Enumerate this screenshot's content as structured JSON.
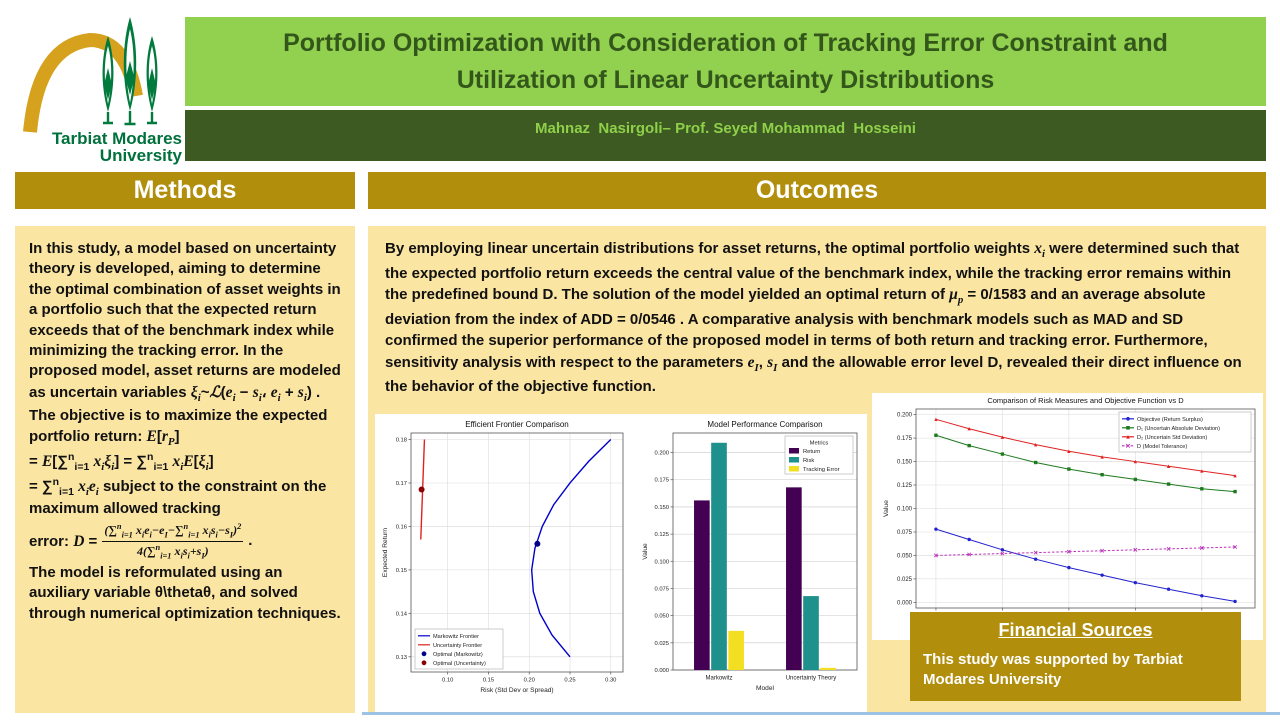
{
  "header": {
    "title_line1": "Portfolio Optimization with Consideration of Tracking Error Constraint and",
    "title_line2": "Utilization of Linear Uncertainty Distributions",
    "authors": "Mahnaz  Nasirgoli– Prof. Seyed Mohammad  Hosseini",
    "logo_text_line1": "Tarbiat Modares",
    "logo_text_line2": "University"
  },
  "methods": {
    "heading": "Methods",
    "para1_html": "In this study, a model based on uncertainty theory is developed, aiming to determine the optimal combination of asset weights in a portfolio such that the expected return exceeds that of the benchmark index while minimizing the tracking error. In the proposed model, asset returns are modeled as uncertain variables <i>ξ<sub>i</sub></i>~<i>ℒ</i>(<i>e<sub>i</sub></i> − <i>s<sub>i</sub></i>، <i>e<sub>i</sub></i> + <i>s<sub>i</sub></i>) . The objective is to maximize the expected portfolio return: <i>E</i>[<i>r<sub>P</sub></i>]<br>= <i>E</i>[∑<sup>n</sup><sub>i=1</sub> <i>x<sub>i</sub>ξ<sub>i</sub></i>] = ∑<sup>n</sup><sub>i=1</sub> <i>x<sub>i</sub>E</i>[<i>ξ<sub>i</sub></i>]<br>= ∑<sup>n</sup><sub>i=1</sub> <i>x<sub>i</sub>e<sub>i</sub></i> subject to the constraint on the maximum allowed tracking",
    "error_prefix_html": "error: <i>D</i> =",
    "frac_num_html": "(∑<sup>n</sup><sub>i=1</sub> x<sub>i</sub>e<sub>i</sub>−e<sub>I</sub>−∑<sup>n</sup><sub>i=1</sub> x<sub>i</sub>s<sub>i</sub>−s<sub>I</sub>)<sup>2</sup>",
    "frac_den_html": "4(∑<sup>n</sup><sub>i=1</sub> x<sub>i</sub>s<sub>i</sub>+s<sub>I</sub>)",
    "frac_period": ".",
    "para2_html": "The model is reformulated using an auxiliary variable θ\\thetaθ, and solved through numerical optimization techniques."
  },
  "outcomes": {
    "heading": "Outcomes",
    "para_html": "By employing linear uncertain distributions for asset returns, the optimal portfolio weights <i>x<sub>i</sub></i> were determined such that the expected portfolio return exceeds the central value of the benchmark index, while the tracking error remains within the predefined bound D. The solution of the model yielded an optimal return of <i>μ<sub>p</sub></i> = 0/1583  and an average absolute deviation from the index of ADD = 0/0546 . A comparative analysis with benchmark models such as MAD and SD confirmed the superior performance of the proposed model in terms of both return and tracking error. Furthermore, sensitivity analysis with respect to the parameters <i>e<sub>I</sub></i>, <i>s<sub>I</sub></i> and the allowable error level D, revealed their direct influence on the behavior of the objective function."
  },
  "financial": {
    "heading": "Financial  Sources",
    "body": "This study was supported by Tarbiat Modares University"
  },
  "colors": {
    "light_green": "#92D050",
    "dark_green_bar": "#3C5A22",
    "title_text_green": "#33571B",
    "gold": "#B28E0D",
    "cream": "#FBE5A3",
    "logo_green": "#007A3D",
    "logo_gold": "#D6A21D",
    "bottom_line_blue": "#9CC2E5"
  },
  "chart_data": [
    {
      "type": "line",
      "title": "Efficient Frontier Comparison",
      "xlabel": "Risk (Std Dev or Spread)",
      "ylabel": "Expected Return",
      "xlim": [
        0.055,
        0.315
      ],
      "ylim": [
        0.1265,
        0.1815
      ],
      "xticks": [
        0.1,
        0.15,
        0.2,
        0.25,
        0.3
      ],
      "xtick_decimals": 2,
      "yticks": [
        0.13,
        0.14,
        0.15,
        0.16,
        0.17,
        0.18
      ],
      "ytick_decimals": 2,
      "grid": true,
      "legend_position": "bottom-left",
      "series": [
        {
          "name": "Markowitz Frontier",
          "color": "#0000CC",
          "type": "line",
          "width": 1.4,
          "x": [
            0.25,
            0.228,
            0.213,
            0.205,
            0.203,
            0.207,
            0.216,
            0.23,
            0.25,
            0.273,
            0.3
          ],
          "y": [
            0.13,
            0.135,
            0.14,
            0.145,
            0.15,
            0.155,
            0.16,
            0.165,
            0.17,
            0.175,
            0.18
          ]
        },
        {
          "name": "Uncertainty Frontier",
          "color": "#DD2222",
          "type": "line",
          "width": 1.4,
          "x": [
            0.067,
            0.0715
          ],
          "y": [
            0.157,
            0.18
          ]
        },
        {
          "name": "Optimal (Markowitz)",
          "color": "#00008B",
          "type": "scatter",
          "x": [
            0.21
          ],
          "y": [
            0.156
          ]
        },
        {
          "name": "Optimal (Uncertainty)",
          "color": "#8B0000",
          "type": "scatter",
          "x": [
            0.068
          ],
          "y": [
            0.1685
          ]
        }
      ]
    },
    {
      "type": "bar",
      "title": "Model Performance Comparison",
      "xlabel": "Model",
      "ylabel": "Value",
      "categories": [
        "Markowitz",
        "Uncertainty Theory"
      ],
      "ylim": [
        0,
        0.218
      ],
      "yticks": [
        0.0,
        0.025,
        0.05,
        0.075,
        0.1,
        0.125,
        0.15,
        0.175,
        0.2
      ],
      "ytick_decimals": 3,
      "grid": true,
      "legend_title": "Metrics",
      "legend_position": "top-right",
      "series": [
        {
          "name": "Return",
          "color": "#440154",
          "values": [
            0.156,
            0.168
          ]
        },
        {
          "name": "Risk",
          "color": "#1F918C",
          "values": [
            0.209,
            0.068
          ]
        },
        {
          "name": "Tracking Error",
          "color": "#F2DF22",
          "values": [
            0.036,
            0.002
          ]
        }
      ]
    },
    {
      "type": "line",
      "title": "Comparison of Risk Measures and Objective Function vs D",
      "xlabel": "D (Tolerance of Model)",
      "ylabel": "Value",
      "xlim": [
        0.0494,
        0.0596
      ],
      "ylim": [
        -0.006,
        0.206
      ],
      "xticks": [
        0.05,
        0.052,
        0.054,
        0.056,
        0.058
      ],
      "xtick_decimals": 3,
      "yticks": [
        0.0,
        0.025,
        0.05,
        0.075,
        0.1,
        0.125,
        0.15,
        0.175,
        0.2
      ],
      "ytick_decimals": 3,
      "grid": true,
      "legend_position": "top-right",
      "x": [
        0.05,
        0.051,
        0.052,
        0.053,
        0.054,
        0.055,
        0.056,
        0.057,
        0.058,
        0.059
      ],
      "series": [
        {
          "name": "Objective (Return Surplus)",
          "color": "#2222CC",
          "marker": "circle",
          "values": [
            0.078,
            0.067,
            0.056,
            0.046,
            0.037,
            0.029,
            0.021,
            0.014,
            0.007,
            0.001
          ]
        },
        {
          "name": "D₁ (Uncertain Absolute Deviation)",
          "color": "#1E7A1E",
          "marker": "square",
          "values": [
            0.178,
            0.167,
            0.158,
            0.149,
            0.142,
            0.136,
            0.131,
            0.126,
            0.121,
            0.118
          ]
        },
        {
          "name": "D₂ (Uncertain Std Deviation)",
          "color": "#E02222",
          "marker": "triangle",
          "values": [
            0.195,
            0.185,
            0.176,
            0.168,
            0.161,
            0.155,
            0.15,
            0.145,
            0.14,
            0.135
          ]
        },
        {
          "name": "D (Model Tolerance)",
          "color": "#BB33BB",
          "marker": "x",
          "dash": "2.5,1.8",
          "values": [
            0.05,
            0.051,
            0.052,
            0.053,
            0.054,
            0.055,
            0.056,
            0.057,
            0.058,
            0.059
          ]
        }
      ]
    }
  ]
}
